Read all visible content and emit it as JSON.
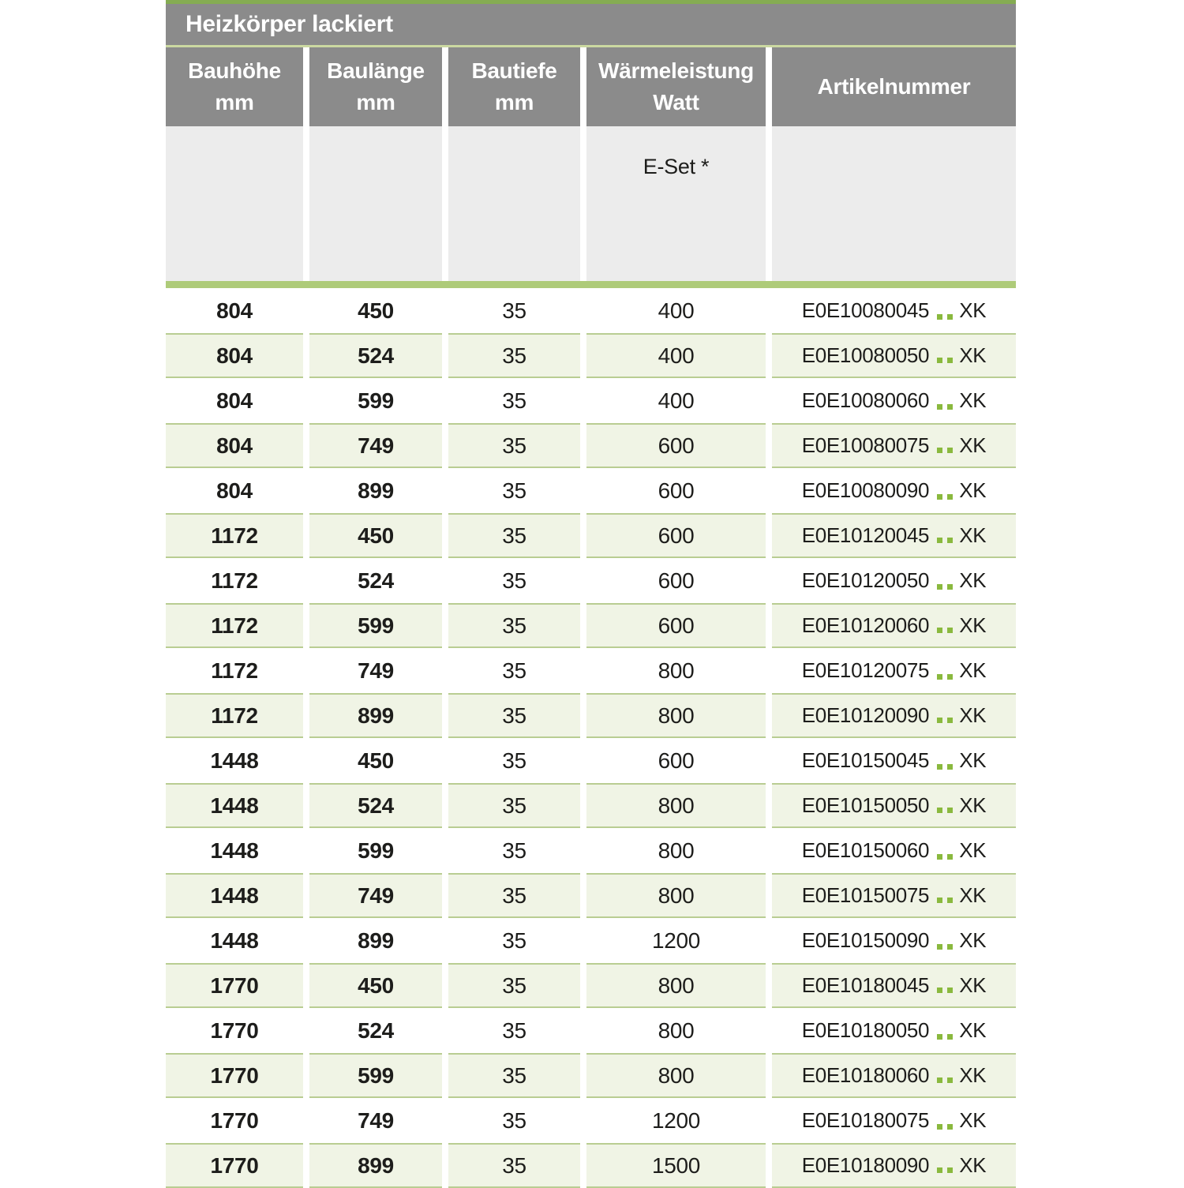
{
  "table": {
    "title": "Heizkörper lackiert",
    "columns": [
      {
        "label": "Bauhöhe",
        "unit": "mm"
      },
      {
        "label": "Baulänge",
        "unit": "mm"
      },
      {
        "label": "Bautiefe",
        "unit": "mm"
      },
      {
        "label": "Wärmeleistung",
        "unit": "Watt"
      },
      {
        "label": "Artikelnummer",
        "unit": ""
      }
    ],
    "subheader": {
      "eset_label": "E-Set *"
    },
    "article_suffix": "XK",
    "rows": [
      {
        "bauhoehe": "804",
        "baulaenge": "450",
        "bautiefe": "35",
        "watt": "400",
        "artikel": "E0E10080045"
      },
      {
        "bauhoehe": "804",
        "baulaenge": "524",
        "bautiefe": "35",
        "watt": "400",
        "artikel": "E0E10080050"
      },
      {
        "bauhoehe": "804",
        "baulaenge": "599",
        "bautiefe": "35",
        "watt": "400",
        "artikel": "E0E10080060"
      },
      {
        "bauhoehe": "804",
        "baulaenge": "749",
        "bautiefe": "35",
        "watt": "600",
        "artikel": "E0E10080075"
      },
      {
        "bauhoehe": "804",
        "baulaenge": "899",
        "bautiefe": "35",
        "watt": "600",
        "artikel": "E0E10080090"
      },
      {
        "bauhoehe": "1172",
        "baulaenge": "450",
        "bautiefe": "35",
        "watt": "600",
        "artikel": "E0E10120045"
      },
      {
        "bauhoehe": "1172",
        "baulaenge": "524",
        "bautiefe": "35",
        "watt": "600",
        "artikel": "E0E10120050"
      },
      {
        "bauhoehe": "1172",
        "baulaenge": "599",
        "bautiefe": "35",
        "watt": "600",
        "artikel": "E0E10120060"
      },
      {
        "bauhoehe": "1172",
        "baulaenge": "749",
        "bautiefe": "35",
        "watt": "800",
        "artikel": "E0E10120075"
      },
      {
        "bauhoehe": "1172",
        "baulaenge": "899",
        "bautiefe": "35",
        "watt": "800",
        "artikel": "E0E10120090"
      },
      {
        "bauhoehe": "1448",
        "baulaenge": "450",
        "bautiefe": "35",
        "watt": "600",
        "artikel": "E0E10150045"
      },
      {
        "bauhoehe": "1448",
        "baulaenge": "524",
        "bautiefe": "35",
        "watt": "800",
        "artikel": "E0E10150050"
      },
      {
        "bauhoehe": "1448",
        "baulaenge": "599",
        "bautiefe": "35",
        "watt": "800",
        "artikel": "E0E10150060"
      },
      {
        "bauhoehe": "1448",
        "baulaenge": "749",
        "bautiefe": "35",
        "watt": "800",
        "artikel": "E0E10150075"
      },
      {
        "bauhoehe": "1448",
        "baulaenge": "899",
        "bautiefe": "35",
        "watt": "1200",
        "artikel": "E0E10150090"
      },
      {
        "bauhoehe": "1770",
        "baulaenge": "450",
        "bautiefe": "35",
        "watt": "800",
        "artikel": "E0E10180045"
      },
      {
        "bauhoehe": "1770",
        "baulaenge": "524",
        "bautiefe": "35",
        "watt": "800",
        "artikel": "E0E10180050"
      },
      {
        "bauhoehe": "1770",
        "baulaenge": "599",
        "bautiefe": "35",
        "watt": "800",
        "artikel": "E0E10180060"
      },
      {
        "bauhoehe": "1770",
        "baulaenge": "749",
        "bautiefe": "35",
        "watt": "1200",
        "artikel": "E0E10180075"
      },
      {
        "bauhoehe": "1770",
        "baulaenge": "899",
        "bautiefe": "35",
        "watt": "1500",
        "artikel": "E0E10180090"
      }
    ],
    "colors": {
      "header_gray": "#8b8b8b",
      "subheader_gray": "#ececec",
      "top_line_green": "#85ac52",
      "thin_line_green": "#cbd8a1",
      "thick_line_green": "#aecb79",
      "row_green_bg": "#f0f4e5",
      "row_border_green": "#b9cd92",
      "dot_green": "#8ab93e",
      "header_text": "#ffffff",
      "body_text": "#1d1d1b"
    }
  }
}
